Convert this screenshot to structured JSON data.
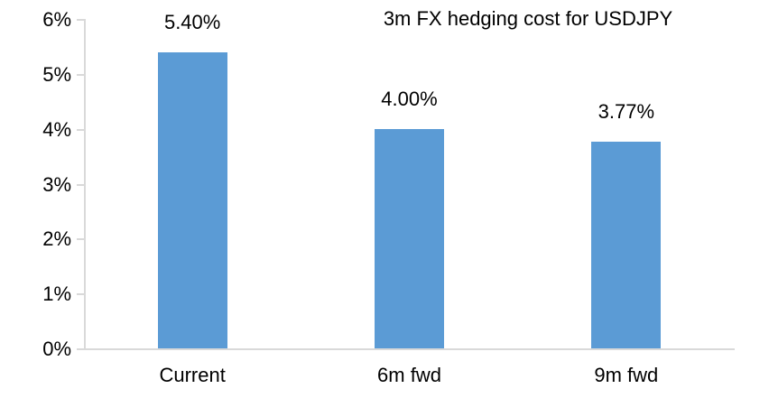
{
  "chart_data": {
    "type": "bar",
    "title": "3m FX hedging cost for USDJPY",
    "categories": [
      "Current",
      "6m fwd",
      "9m fwd"
    ],
    "values": [
      5.4,
      4.0,
      3.77
    ],
    "data_labels": [
      "5.40%",
      "4.00%",
      "3.77%"
    ],
    "xlabel": "",
    "ylabel": "",
    "ylim": [
      0,
      6
    ],
    "ytick_step": 1,
    "ytick_labels": [
      "0%",
      "1%",
      "2%",
      "3%",
      "4%",
      "5%",
      "6%"
    ],
    "grid": false,
    "legend_position": "none",
    "bar_color": "#5b9bd5",
    "axis_color": "#d9d9d9",
    "text_color": "#000000"
  }
}
